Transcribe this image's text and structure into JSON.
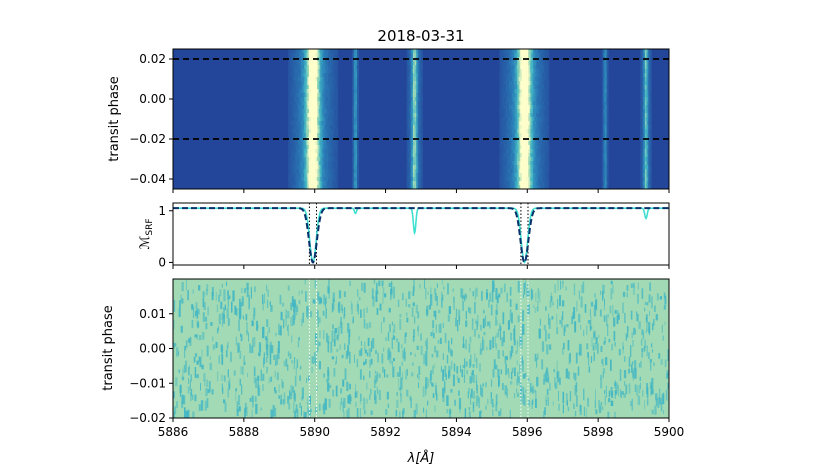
{
  "title": "2018-03-31",
  "chart_data": [
    {
      "type": "heatmap",
      "panel": "top",
      "ylabel": "transit phase",
      "xlim": [
        5886,
        5900
      ],
      "ylim": [
        -0.045,
        0.025
      ],
      "yticks": [
        0.02,
        0.0,
        -0.02,
        -0.04
      ],
      "ytick_labels": [
        "0.02",
        "0.00",
        "−0.02",
        "−0.04"
      ],
      "transit_boundaries": [
        0.02,
        -0.02
      ],
      "colormap": [
        "#24469a",
        "#2b7fb8",
        "#41b6c4",
        "#a1dab4",
        "#ffffcc"
      ],
      "bright_bands": [
        {
          "center": 5889.95,
          "width": 0.12,
          "peak": 1.0
        },
        {
          "center": 5895.92,
          "width": 0.12,
          "peak": 1.0
        },
        {
          "center": 5892.82,
          "width": 0.05,
          "peak": 0.55
        },
        {
          "center": 5891.15,
          "width": 0.03,
          "peak": 0.3
        },
        {
          "center": 5899.35,
          "width": 0.04,
          "peak": 0.45
        },
        {
          "center": 5898.2,
          "width": 0.03,
          "peak": 0.25
        }
      ]
    },
    {
      "type": "line",
      "panel": "middle",
      "ylabel": "ℳ_SRF",
      "ylabel_main": "ℳ",
      "ylabel_sub": "SRF",
      "xlim": [
        5886,
        5900
      ],
      "ylim": [
        -0.05,
        1.15
      ],
      "yticks": [
        0,
        1
      ],
      "ytick_labels": [
        "0",
        "1"
      ],
      "dotted_lines": [
        5889.85,
        5890.05,
        5895.82,
        5896.02
      ],
      "series": [
        {
          "style": "solid",
          "color": "#40e0d0",
          "baseline": 1.05,
          "lines": [
            {
              "center": 5889.95,
              "depth": 1.05,
              "width": 0.09
            },
            {
              "center": 5895.92,
              "depth": 1.05,
              "width": 0.09
            },
            {
              "center": 5892.82,
              "depth": 0.48,
              "width": 0.035
            },
            {
              "center": 5891.15,
              "depth": 0.1,
              "width": 0.03
            },
            {
              "center": 5899.35,
              "depth": 0.2,
              "width": 0.035
            }
          ]
        },
        {
          "style": "dashed",
          "color": "#08306b",
          "baseline": 1.05,
          "lines": [
            {
              "center": 5889.95,
              "depth": 1.05,
              "width": 0.11
            },
            {
              "center": 5895.92,
              "depth": 1.05,
              "width": 0.11
            }
          ]
        }
      ]
    },
    {
      "type": "heatmap",
      "panel": "bottom",
      "xlabel": "λ[Å]",
      "ylabel": "transit phase",
      "xlim": [
        5886,
        5900
      ],
      "ylim": [
        -0.02,
        0.02
      ],
      "xticks": [
        5886,
        5888,
        5890,
        5892,
        5894,
        5896,
        5898,
        5900
      ],
      "xtick_labels": [
        "5886",
        "5888",
        "5890",
        "5892",
        "5894",
        "5896",
        "5898",
        "5900"
      ],
      "yticks": [
        0.01,
        0.0,
        -0.01,
        -0.02
      ],
      "ytick_labels": [
        "0.01",
        "0.00",
        "−0.01",
        "−0.02"
      ],
      "dotted_lines": [
        5889.85,
        5890.05,
        5895.82,
        5896.02
      ],
      "colormap": [
        "#a1dab4",
        "#41b6c4"
      ]
    }
  ]
}
